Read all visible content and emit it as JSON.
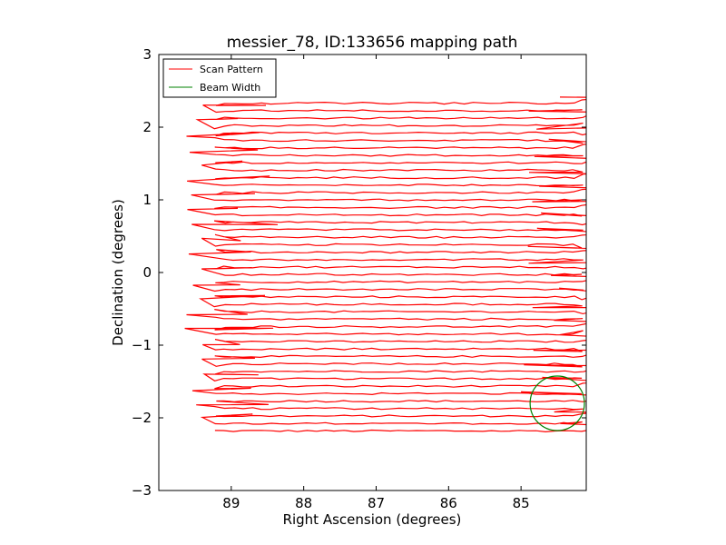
{
  "chart_data": {
    "type": "line",
    "title": "messier_78, ID:133656 mapping path",
    "xlabel": "Right Ascension (degrees)",
    "ylabel": "Declination (degrees)",
    "xlim": [
      90.0,
      84.1
    ],
    "ylim": [
      -3,
      3
    ],
    "xticks": [
      89,
      88,
      87,
      86,
      85
    ],
    "yticks": [
      -3,
      -2,
      -1,
      0,
      1,
      2,
      3
    ],
    "xtick_labels": [
      "89",
      "88",
      "87",
      "86",
      "85"
    ],
    "ytick_labels": [
      "−3",
      "−2",
      "−1",
      "0",
      "1",
      "2",
      "3"
    ],
    "grid": false,
    "legend": {
      "placement": "top-left"
    },
    "scan": {
      "ra_start": 89.22,
      "ra_end": 84.15,
      "dec_min": -2.18,
      "dec_max": 2.33,
      "num_rows": 45
    },
    "series": [
      {
        "name": "Scan Pattern",
        "color": "#ff0000",
        "kind": "scan-path"
      },
      {
        "name": "Beam Width",
        "color": "#008000",
        "kind": "circle",
        "center": [
          84.5,
          -1.8
        ],
        "diameter_deg": 0.75
      }
    ]
  }
}
